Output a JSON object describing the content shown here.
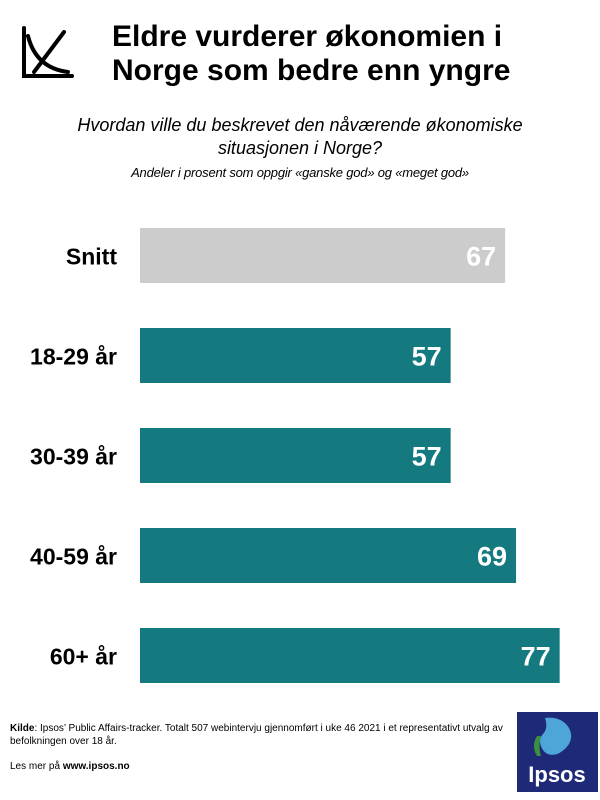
{
  "header": {
    "title_line1": "Eldre vurderer økonomien i",
    "title_line2": "Norge som bedre enn yngre",
    "subtitle_line1": "Hvordan ville du beskrevet den nåværende økonomiske",
    "subtitle_line2": "situasjonen i Norge?",
    "note": "Andeler i prosent som oppgir «ganske god» og «meget god»"
  },
  "icon": "chart-axes-icon",
  "colors": {
    "bar_primary": "#157a7f",
    "bar_average": "#cccccc",
    "logo_bg": "#1e2a78",
    "label_text": "#ffffff"
  },
  "chart_data": {
    "type": "bar",
    "orientation": "horizontal",
    "categories": [
      "Snitt",
      "18-29 år",
      "30-39 år",
      "40-59 år",
      "60+ år"
    ],
    "values": [
      67,
      57,
      57,
      69,
      77
    ],
    "xlim": [
      0,
      100
    ],
    "grid": false,
    "legend": "none"
  },
  "footer": {
    "source_label": "Kilde",
    "source_text": ": Ipsos’ Public Affairs-tracker. Totalt 507 webintervju gjennomført i uke 46 2021 i et representativt utvalg av befolkningen over 18 år.",
    "more_prefix": "Les mer på ",
    "more_link": "www.ipsos.no"
  },
  "logo": {
    "text": "Ipsos"
  }
}
